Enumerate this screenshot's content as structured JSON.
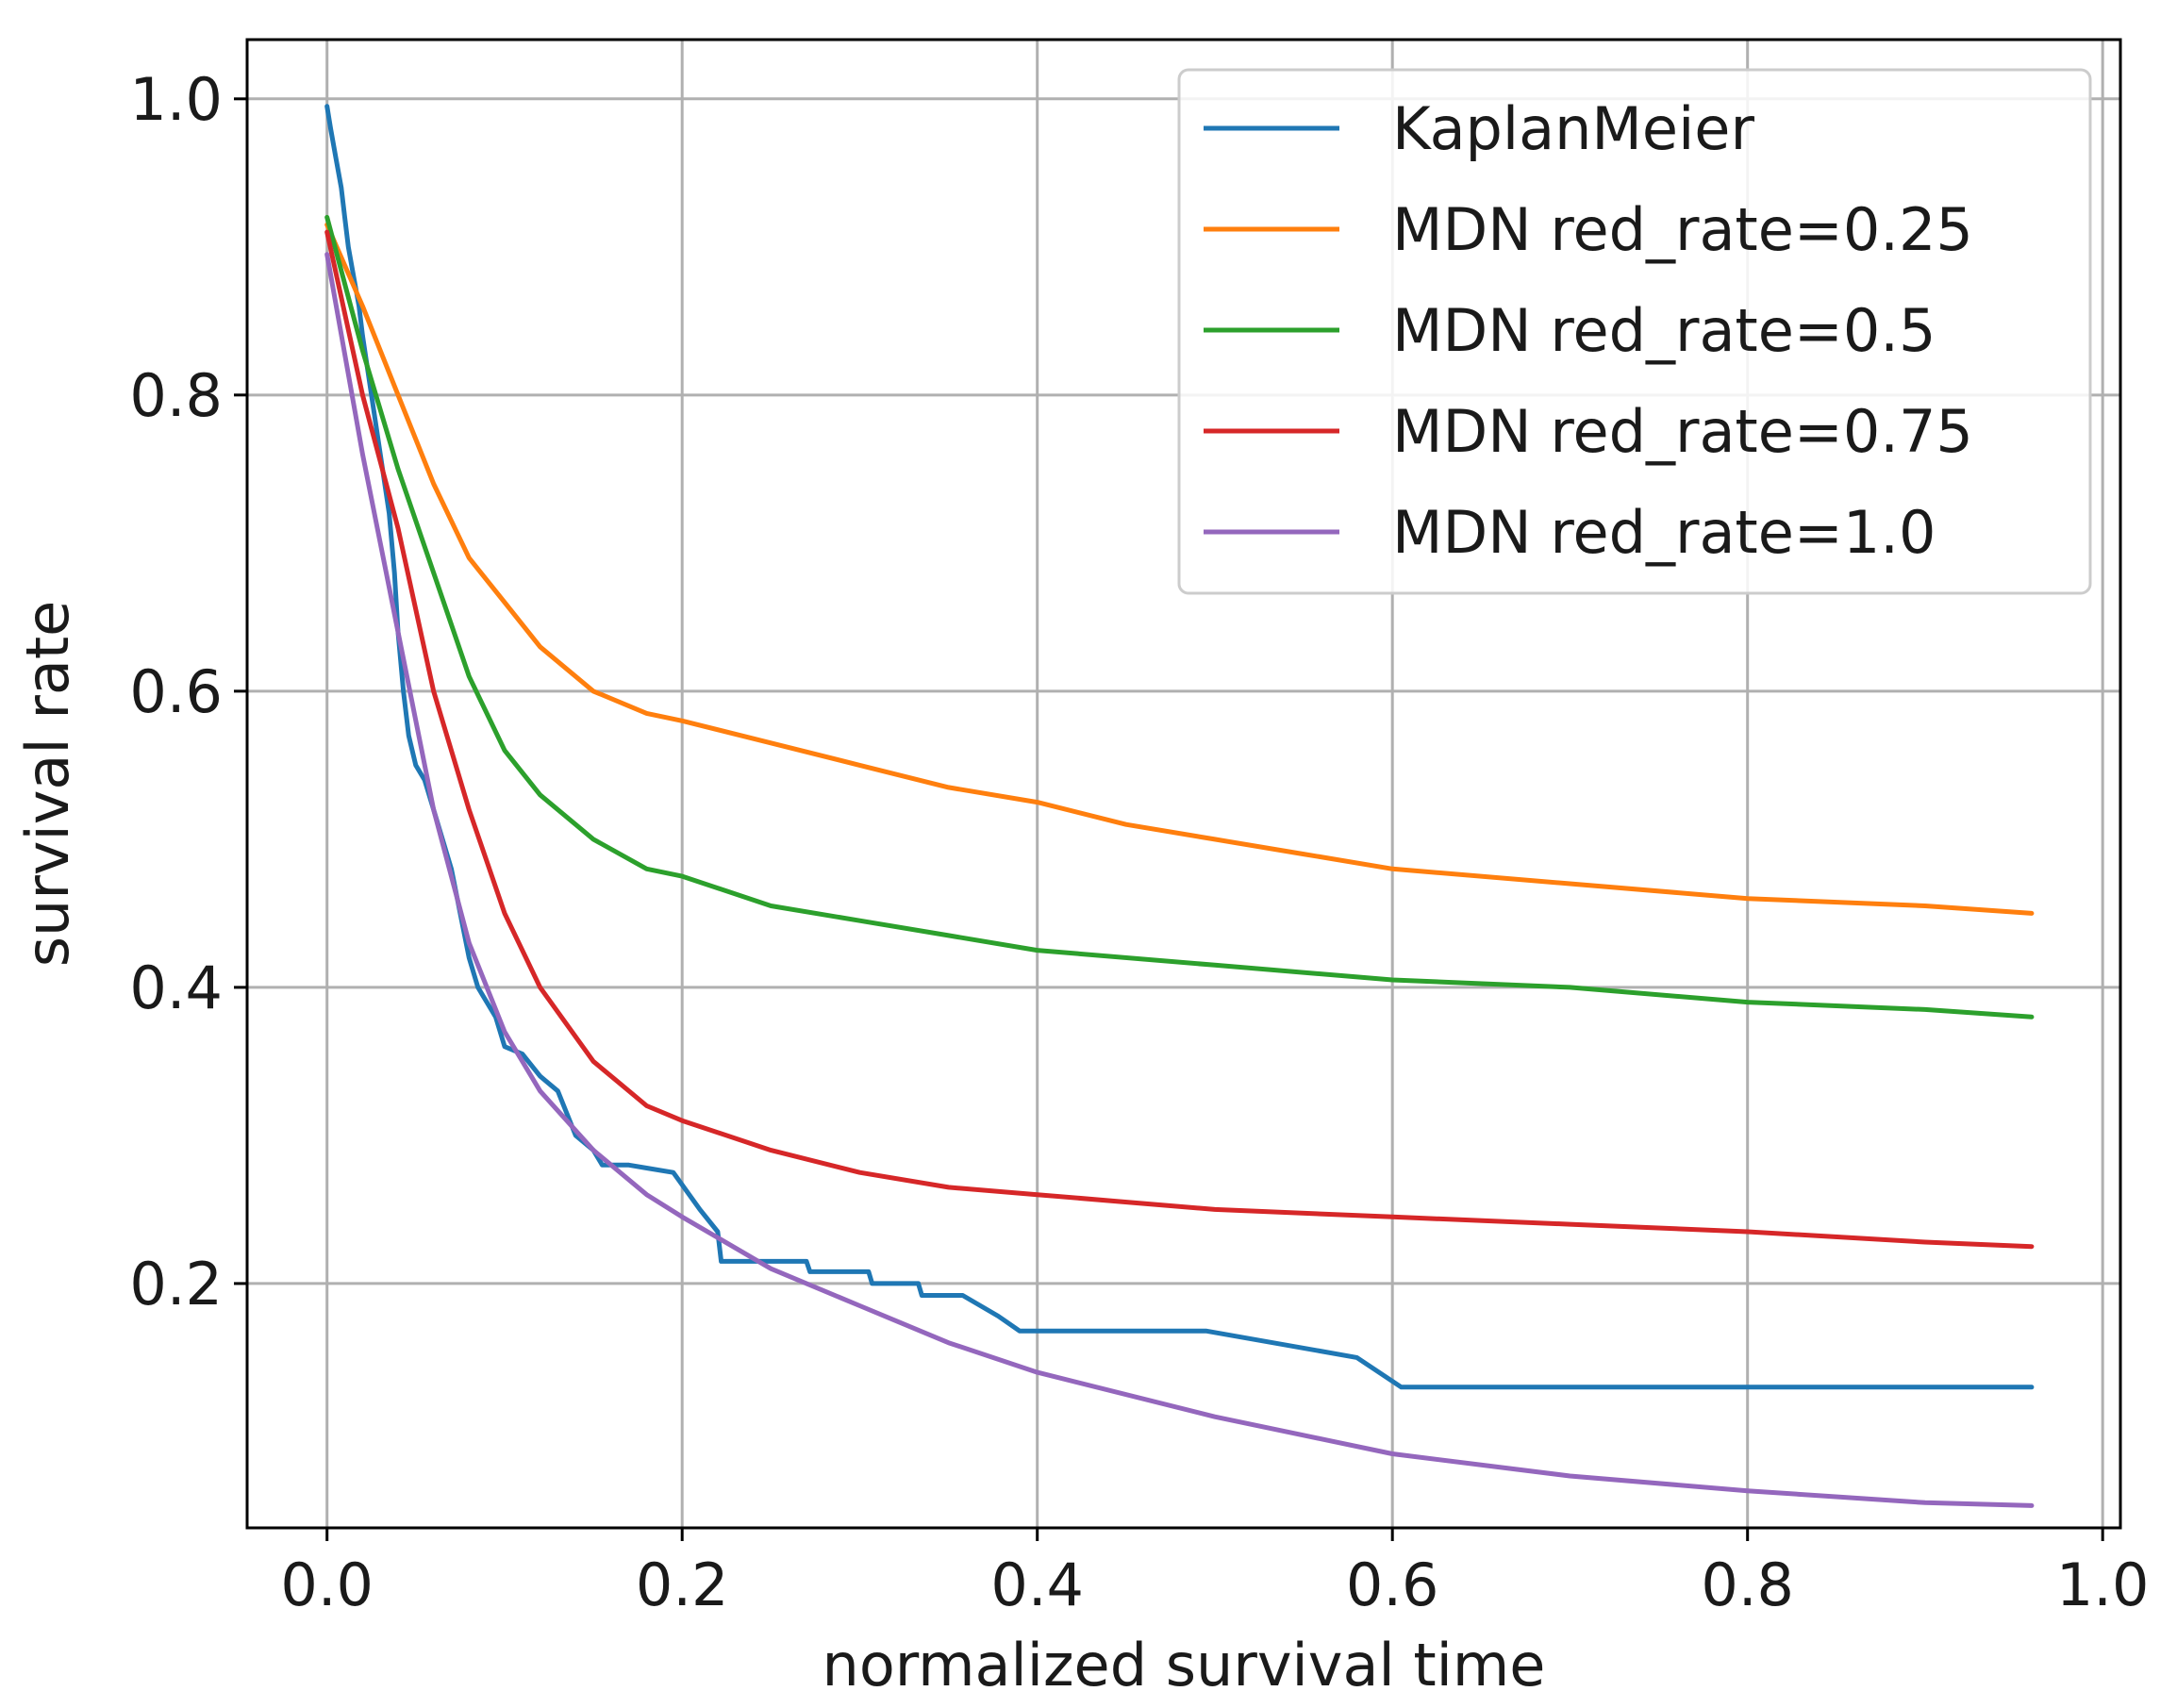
{
  "chart_data": {
    "type": "line",
    "title": "",
    "xlabel": "normalized survival time",
    "ylabel": "survival rate",
    "xlim": [
      -0.045,
      1.01
    ],
    "ylim": [
      0.035,
      1.04
    ],
    "xticks": [
      0.0,
      0.2,
      0.4,
      0.6,
      0.8,
      1.0
    ],
    "xtick_labels": [
      "0.0",
      "0.2",
      "0.4",
      "0.6",
      "0.8",
      "1.0"
    ],
    "yticks": [
      0.2,
      0.4,
      0.6,
      0.8,
      1.0
    ],
    "ytick_labels": [
      "0.2",
      "0.4",
      "0.6",
      "0.8",
      "1.0"
    ],
    "grid": true,
    "legend_position": "top-right",
    "series": [
      {
        "name": "KaplanMeier",
        "color": "#1f77b4",
        "points": [
          [
            0.0,
            0.995
          ],
          [
            0.002,
            0.98
          ],
          [
            0.005,
            0.96
          ],
          [
            0.008,
            0.94
          ],
          [
            0.01,
            0.92
          ],
          [
            0.012,
            0.9
          ],
          [
            0.015,
            0.88
          ],
          [
            0.018,
            0.86
          ],
          [
            0.02,
            0.84
          ],
          [
            0.025,
            0.8
          ],
          [
            0.03,
            0.76
          ],
          [
            0.035,
            0.72
          ],
          [
            0.038,
            0.68
          ],
          [
            0.04,
            0.64
          ],
          [
            0.043,
            0.6
          ],
          [
            0.046,
            0.57
          ],
          [
            0.05,
            0.55
          ],
          [
            0.055,
            0.54
          ],
          [
            0.06,
            0.52
          ],
          [
            0.065,
            0.5
          ],
          [
            0.07,
            0.48
          ],
          [
            0.075,
            0.45
          ],
          [
            0.08,
            0.42
          ],
          [
            0.085,
            0.4
          ],
          [
            0.09,
            0.39
          ],
          [
            0.095,
            0.38
          ],
          [
            0.1,
            0.36
          ],
          [
            0.11,
            0.355
          ],
          [
            0.12,
            0.34
          ],
          [
            0.13,
            0.33
          ],
          [
            0.14,
            0.3
          ],
          [
            0.15,
            0.29
          ],
          [
            0.155,
            0.28
          ],
          [
            0.17,
            0.28
          ],
          [
            0.18,
            0.278
          ],
          [
            0.195,
            0.275
          ],
          [
            0.21,
            0.25
          ],
          [
            0.22,
            0.235
          ],
          [
            0.222,
            0.215
          ],
          [
            0.27,
            0.215
          ],
          [
            0.272,
            0.208
          ],
          [
            0.305,
            0.208
          ],
          [
            0.307,
            0.2
          ],
          [
            0.333,
            0.2
          ],
          [
            0.335,
            0.192
          ],
          [
            0.358,
            0.192
          ],
          [
            0.378,
            0.178
          ],
          [
            0.39,
            0.168
          ],
          [
            0.495,
            0.168
          ],
          [
            0.58,
            0.15
          ],
          [
            0.605,
            0.13
          ],
          [
            0.96,
            0.13
          ]
        ]
      },
      {
        "name": "MDN red_rate=0.25",
        "color": "#ff7f0e",
        "points": [
          [
            0.0,
            0.915
          ],
          [
            0.02,
            0.86
          ],
          [
            0.04,
            0.8
          ],
          [
            0.06,
            0.74
          ],
          [
            0.08,
            0.69
          ],
          [
            0.1,
            0.66
          ],
          [
            0.12,
            0.63
          ],
          [
            0.15,
            0.6
          ],
          [
            0.18,
            0.585
          ],
          [
            0.2,
            0.58
          ],
          [
            0.25,
            0.565
          ],
          [
            0.3,
            0.55
          ],
          [
            0.35,
            0.535
          ],
          [
            0.4,
            0.525
          ],
          [
            0.45,
            0.51
          ],
          [
            0.5,
            0.5
          ],
          [
            0.55,
            0.49
          ],
          [
            0.6,
            0.48
          ],
          [
            0.7,
            0.47
          ],
          [
            0.8,
            0.46
          ],
          [
            0.9,
            0.455
          ],
          [
            0.96,
            0.45
          ]
        ]
      },
      {
        "name": "MDN red_rate=0.5",
        "color": "#2ca02c",
        "points": [
          [
            0.0,
            0.92
          ],
          [
            0.02,
            0.83
          ],
          [
            0.04,
            0.75
          ],
          [
            0.06,
            0.68
          ],
          [
            0.08,
            0.61
          ],
          [
            0.1,
            0.56
          ],
          [
            0.12,
            0.53
          ],
          [
            0.15,
            0.5
          ],
          [
            0.18,
            0.48
          ],
          [
            0.2,
            0.475
          ],
          [
            0.25,
            0.455
          ],
          [
            0.3,
            0.445
          ],
          [
            0.35,
            0.435
          ],
          [
            0.4,
            0.425
          ],
          [
            0.5,
            0.415
          ],
          [
            0.6,
            0.405
          ],
          [
            0.7,
            0.4
          ],
          [
            0.8,
            0.39
          ],
          [
            0.9,
            0.385
          ],
          [
            0.96,
            0.38
          ]
        ]
      },
      {
        "name": "MDN red_rate=0.75",
        "color": "#d62728",
        "points": [
          [
            0.0,
            0.91
          ],
          [
            0.02,
            0.8
          ],
          [
            0.04,
            0.71
          ],
          [
            0.06,
            0.6
          ],
          [
            0.08,
            0.52
          ],
          [
            0.1,
            0.45
          ],
          [
            0.12,
            0.4
          ],
          [
            0.15,
            0.35
          ],
          [
            0.18,
            0.32
          ],
          [
            0.2,
            0.31
          ],
          [
            0.25,
            0.29
          ],
          [
            0.3,
            0.275
          ],
          [
            0.35,
            0.265
          ],
          [
            0.4,
            0.26
          ],
          [
            0.5,
            0.25
          ],
          [
            0.6,
            0.245
          ],
          [
            0.7,
            0.24
          ],
          [
            0.8,
            0.235
          ],
          [
            0.9,
            0.228
          ],
          [
            0.96,
            0.225
          ]
        ]
      },
      {
        "name": "MDN red_rate=1.0",
        "color": "#9467bd",
        "points": [
          [
            0.0,
            0.895
          ],
          [
            0.02,
            0.76
          ],
          [
            0.04,
            0.64
          ],
          [
            0.06,
            0.52
          ],
          [
            0.08,
            0.43
          ],
          [
            0.1,
            0.37
          ],
          [
            0.12,
            0.33
          ],
          [
            0.15,
            0.29
          ],
          [
            0.18,
            0.26
          ],
          [
            0.2,
            0.245
          ],
          [
            0.25,
            0.21
          ],
          [
            0.3,
            0.185
          ],
          [
            0.35,
            0.16
          ],
          [
            0.4,
            0.14
          ],
          [
            0.5,
            0.11
          ],
          [
            0.6,
            0.085
          ],
          [
            0.7,
            0.07
          ],
          [
            0.8,
            0.06
          ],
          [
            0.9,
            0.052
          ],
          [
            0.96,
            0.05
          ]
        ]
      }
    ]
  }
}
